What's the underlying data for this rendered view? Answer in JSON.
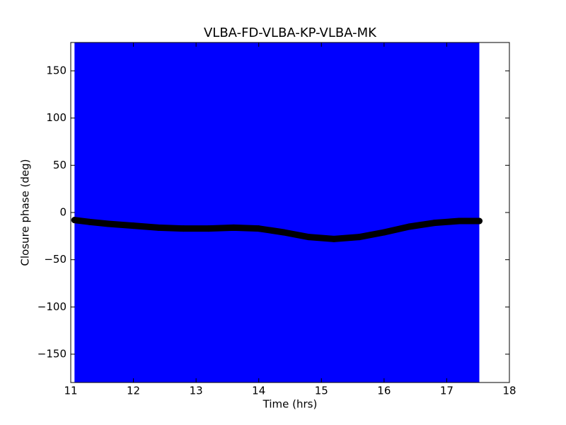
{
  "chart_data": {
    "type": "scatter",
    "title": "VLBA-FD-VLBA-KP-VLBA-MK",
    "x_label": "Time (hrs)",
    "y_label": "Closure phase (deg)",
    "band": {
      "x": [
        11.06,
        17.52
      ],
      "color": "#0000ff"
    },
    "series": [
      {
        "color": "#000000",
        "x": [
          11.06,
          11.3,
          11.6,
          12,
          12.4,
          12.8,
          13.2,
          13.6,
          14,
          14.4,
          14.8,
          15.2,
          15.6,
          16,
          16.4,
          16.8,
          17.2,
          17.52
        ],
        "values": [
          -8,
          -10,
          -12,
          -14,
          -16,
          -17,
          -17,
          -16,
          -17,
          -21,
          -26,
          -28,
          -26,
          -21,
          -15,
          -11,
          -9,
          -9
        ]
      }
    ],
    "xlim": [
      11,
      18
    ],
    "xticks": [
      11,
      12,
      13,
      14,
      15,
      16,
      17,
      18
    ],
    "ylim": [
      -180,
      180
    ],
    "yticks": [
      {
        "value": -150,
        "label": "−150"
      },
      {
        "value": -100,
        "label": "−100"
      },
      {
        "value": -50,
        "label": "−50"
      },
      0,
      50,
      100,
      150
    ]
  }
}
